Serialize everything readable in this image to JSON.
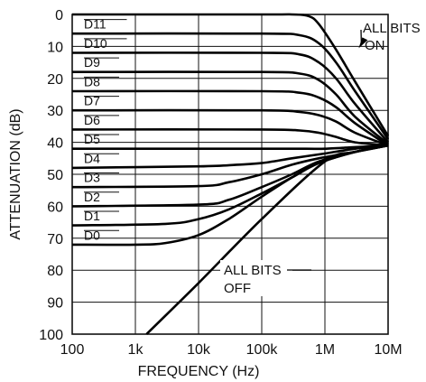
{
  "chart_data": {
    "type": "line",
    "xlabel": "FREQUENCY (Hz)",
    "ylabel": "ATTENUATION (dB)",
    "x_scale": "log",
    "y_inverted": true,
    "xlim": [
      100,
      10000000
    ],
    "ylim": [
      0,
      100
    ],
    "grid": true,
    "x_ticks": [
      100,
      1000,
      10000,
      100000,
      1000000,
      10000000
    ],
    "x_tick_labels": [
      "100",
      "1k",
      "10k",
      "100k",
      "1M",
      "10M"
    ],
    "y_ticks": [
      0,
      10,
      20,
      30,
      40,
      50,
      60,
      70,
      80,
      90,
      100
    ],
    "y_tick_labels": [
      "0",
      "10",
      "20",
      "30",
      "40",
      "50",
      "60",
      "70",
      "80",
      "90",
      "100"
    ],
    "series": [
      {
        "name": "D11",
        "x": [
          100,
          100000,
          300000,
          550000,
          800000,
          1500000,
          3000000,
          10000000
        ],
        "y": [
          0,
          0,
          0,
          0.5,
          3,
          11,
          21,
          38
        ]
      },
      {
        "name": "D10",
        "x": [
          100,
          100000,
          400000,
          800000,
          1500000,
          3000000,
          10000000
        ],
        "y": [
          6,
          6,
          6.5,
          9,
          15,
          24,
          39
        ]
      },
      {
        "name": "D9",
        "x": [
          100,
          100000,
          400000,
          800000,
          1500000,
          3000000,
          10000000
        ],
        "y": [
          12,
          12,
          12.5,
          15,
          20,
          28,
          40
        ]
      },
      {
        "name": "D8",
        "x": [
          100,
          100000,
          400000,
          800000,
          1500000,
          3000000,
          10000000
        ],
        "y": [
          18,
          18,
          18.5,
          20.5,
          25,
          32,
          40.5
        ]
      },
      {
        "name": "D7",
        "x": [
          100,
          100000,
          400000,
          800000,
          1500000,
          3000000,
          10000000
        ],
        "y": [
          24,
          24,
          24.5,
          26,
          29,
          34,
          41
        ]
      },
      {
        "name": "D6",
        "x": [
          100,
          100000,
          400000,
          800000,
          1500000,
          3000000,
          10000000
        ],
        "y": [
          30,
          30,
          30.5,
          31.5,
          33.5,
          37,
          41
        ]
      },
      {
        "name": "D5",
        "x": [
          100,
          100000,
          400000,
          800000,
          1500000,
          3000000,
          10000000
        ],
        "y": [
          36,
          36,
          36.3,
          37,
          38.3,
          40,
          41
        ]
      },
      {
        "name": "D4",
        "x": [
          100,
          10000,
          100000,
          500000,
          1000000,
          3000000,
          10000000
        ],
        "y": [
          42,
          42,
          42,
          42,
          42,
          41.5,
          41
        ]
      },
      {
        "name": "D3",
        "x": [
          100,
          10000,
          40000,
          100000,
          300000,
          1000000,
          3000000,
          10000000
        ],
        "y": [
          48,
          47.5,
          47,
          46.5,
          45,
          43.5,
          42,
          41
        ]
      },
      {
        "name": "D2",
        "x": [
          100,
          10000,
          30000,
          100000,
          300000,
          800000,
          3000000,
          10000000
        ],
        "y": [
          54,
          53.7,
          52.5,
          50,
          47,
          45,
          43,
          41
        ]
      },
      {
        "name": "D1",
        "x": [
          100,
          10000,
          30000,
          100000,
          300000,
          800000,
          3000000,
          10000000
        ],
        "y": [
          60,
          59.5,
          58,
          54,
          50,
          46,
          43,
          41
        ]
      },
      {
        "name": "D0",
        "x": [
          100,
          3000,
          10000,
          30000,
          100000,
          300000,
          800000,
          3000000,
          10000000
        ],
        "y": [
          66,
          65.5,
          64,
          61,
          56,
          51,
          46.5,
          43,
          41
        ]
      },
      {
        "name": "",
        "x": [
          100,
          1000,
          3000,
          10000,
          30000,
          100000,
          300000,
          800000,
          3000000,
          10000000
        ],
        "y": [
          72,
          72,
          71.5,
          69,
          64,
          57,
          51,
          46.5,
          43,
          41
        ]
      },
      {
        "name": "ALL BITS OFF",
        "x": [
          1500,
          10000,
          100000,
          1000000,
          3000000,
          10000000
        ],
        "y": [
          100,
          84,
          64,
          46,
          43,
          41
        ]
      }
    ],
    "curve_labels": [
      {
        "text": "D11",
        "at_y": 3
      },
      {
        "text": "D10",
        "at_y": 9
      },
      {
        "text": "D9",
        "at_y": 15
      },
      {
        "text": "D8",
        "at_y": 21
      },
      {
        "text": "D7",
        "at_y": 27
      },
      {
        "text": "D6",
        "at_y": 33
      },
      {
        "text": "D5",
        "at_y": 39
      },
      {
        "text": "D4",
        "at_y": 45
      },
      {
        "text": "D3",
        "at_y": 51
      },
      {
        "text": "D2",
        "at_y": 57
      },
      {
        "text": "D1",
        "at_y": 63
      },
      {
        "text": "D0",
        "at_y": 69
      }
    ],
    "annotations": [
      {
        "lines": [
          "ALL BITS",
          "ON"
        ],
        "points_to": {
          "x": 3000000,
          "y": 10
        }
      },
      {
        "lines": [
          "ALL BITS",
          "OFF"
        ],
        "points_to": {
          "x": 100000,
          "y": 63
        }
      }
    ]
  }
}
